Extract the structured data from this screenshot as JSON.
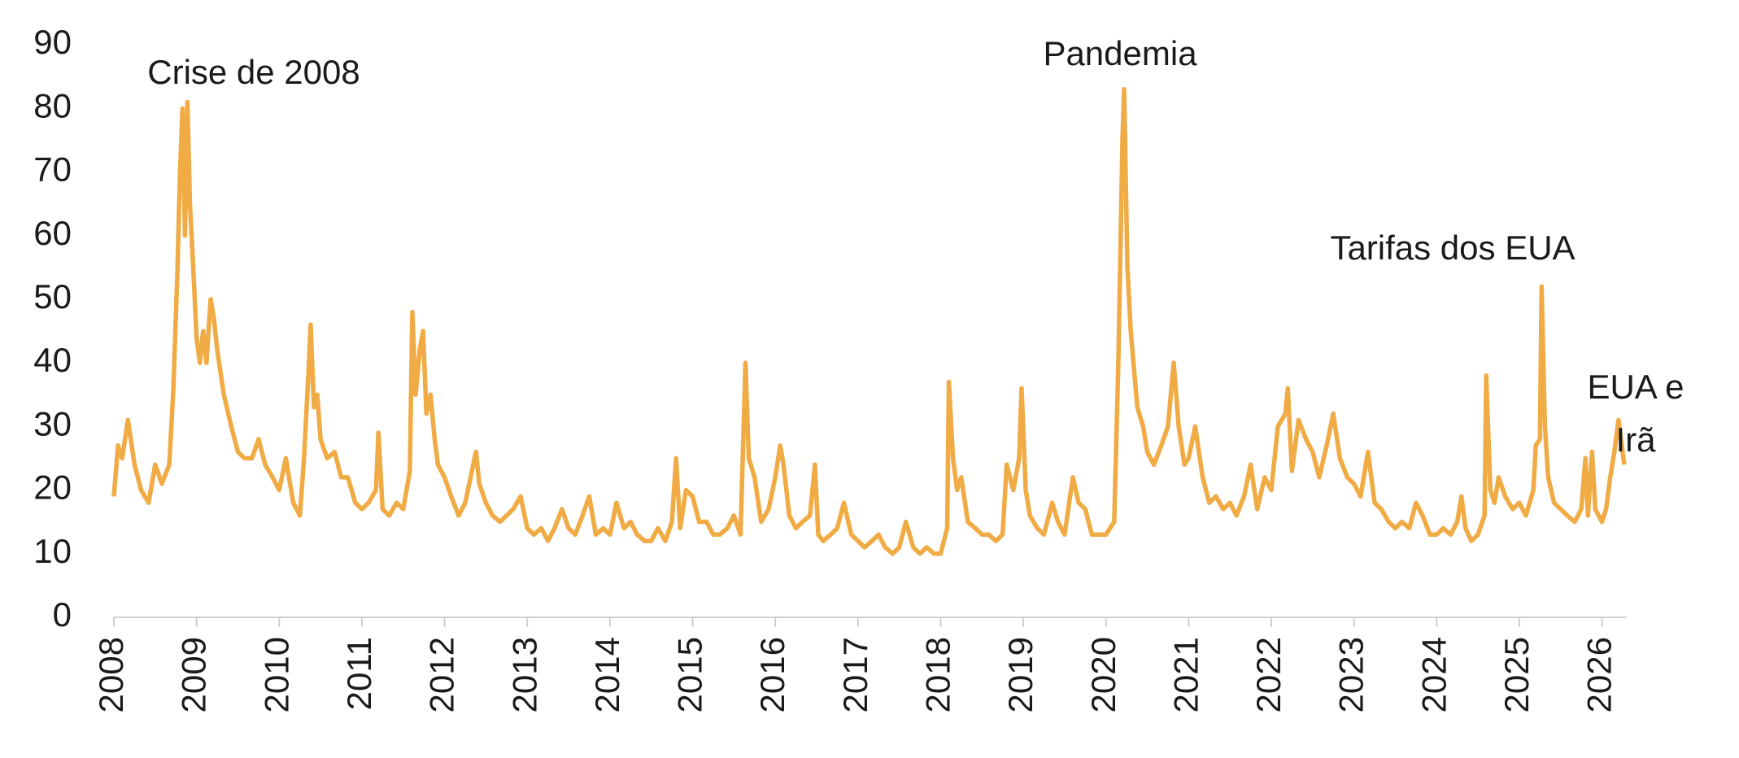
{
  "chart_data": {
    "type": "line",
    "annotations": [
      "Crise de 2008",
      "Pandemia",
      "Tarifas dos EUA",
      "EUA e",
      "Irã"
    ],
    "xlim": [
      2008,
      2026.3
    ],
    "xticks": [
      2008,
      2009,
      2010,
      2011,
      2012,
      2013,
      2014,
      2015,
      2016,
      2017,
      2018,
      2019,
      2020,
      2021,
      2022,
      2023,
      2024,
      2025,
      2026
    ],
    "ylim": [
      0,
      90
    ],
    "yticks": [
      0,
      10,
      20,
      30,
      40,
      50,
      60,
      70,
      80,
      90
    ],
    "grid": false,
    "color": "#f0ab45",
    "x": [
      2008.0,
      2008.05,
      2008.1,
      2008.17,
      2008.25,
      2008.33,
      2008.42,
      2008.5,
      2008.58,
      2008.67,
      2008.72,
      2008.77,
      2008.8,
      2008.83,
      2008.86,
      2008.89,
      2008.92,
      2008.96,
      2009.0,
      2009.04,
      2009.08,
      2009.12,
      2009.17,
      2009.21,
      2009.25,
      2009.33,
      2009.42,
      2009.5,
      2009.58,
      2009.67,
      2009.75,
      2009.83,
      2009.92,
      2010.0,
      2010.08,
      2010.17,
      2010.25,
      2010.3,
      2010.36,
      2010.38,
      2010.42,
      2010.46,
      2010.5,
      2010.58,
      2010.67,
      2010.75,
      2010.83,
      2010.92,
      2011.0,
      2011.08,
      2011.17,
      2011.2,
      2011.25,
      2011.33,
      2011.42,
      2011.5,
      2011.58,
      2011.61,
      2011.65,
      2011.7,
      2011.74,
      2011.78,
      2011.83,
      2011.88,
      2011.92,
      2012.0,
      2012.08,
      2012.17,
      2012.25,
      2012.38,
      2012.42,
      2012.5,
      2012.58,
      2012.67,
      2012.75,
      2012.83,
      2012.92,
      2013.0,
      2013.08,
      2013.17,
      2013.25,
      2013.33,
      2013.42,
      2013.5,
      2013.58,
      2013.67,
      2013.75,
      2013.83,
      2013.92,
      2014.0,
      2014.08,
      2014.17,
      2014.25,
      2014.33,
      2014.42,
      2014.5,
      2014.58,
      2014.67,
      2014.75,
      2014.8,
      2014.85,
      2014.92,
      2015.0,
      2015.08,
      2015.17,
      2015.25,
      2015.33,
      2015.42,
      2015.5,
      2015.58,
      2015.64,
      2015.68,
      2015.75,
      2015.83,
      2015.92,
      2016.0,
      2016.06,
      2016.1,
      2016.17,
      2016.25,
      2016.33,
      2016.42,
      2016.48,
      2016.52,
      2016.58,
      2016.67,
      2016.75,
      2016.83,
      2016.92,
      2017.0,
      2017.08,
      2017.17,
      2017.25,
      2017.33,
      2017.42,
      2017.5,
      2017.58,
      2017.67,
      2017.75,
      2017.83,
      2017.92,
      2018.0,
      2018.08,
      2018.1,
      2018.15,
      2018.2,
      2018.25,
      2018.33,
      2018.42,
      2018.5,
      2018.58,
      2018.67,
      2018.75,
      2018.8,
      2018.88,
      2018.95,
      2018.98,
      2019.03,
      2019.08,
      2019.17,
      2019.25,
      2019.35,
      2019.42,
      2019.5,
      2019.6,
      2019.67,
      2019.75,
      2019.83,
      2019.92,
      2020.0,
      2020.1,
      2020.15,
      2020.2,
      2020.22,
      2020.26,
      2020.3,
      2020.38,
      2020.45,
      2020.5,
      2020.58,
      2020.67,
      2020.75,
      2020.82,
      2020.88,
      2020.95,
      2021.0,
      2021.08,
      2021.17,
      2021.25,
      2021.33,
      2021.42,
      2021.5,
      2021.58,
      2021.67,
      2021.75,
      2021.83,
      2021.92,
      2022.0,
      2022.08,
      2022.17,
      2022.2,
      2022.25,
      2022.33,
      2022.42,
      2022.5,
      2022.58,
      2022.67,
      2022.75,
      2022.83,
      2022.92,
      2023.0,
      2023.08,
      2023.17,
      2023.25,
      2023.33,
      2023.42,
      2023.5,
      2023.58,
      2023.67,
      2023.75,
      2023.83,
      2023.92,
      2024.0,
      2024.08,
      2024.17,
      2024.25,
      2024.3,
      2024.35,
      2024.42,
      2024.5,
      2024.58,
      2024.6,
      2024.65,
      2024.7,
      2024.75,
      2024.83,
      2024.92,
      2025.0,
      2025.08,
      2025.17,
      2025.2,
      2025.25,
      2025.27,
      2025.31,
      2025.35,
      2025.42,
      2025.5,
      2025.58,
      2025.67,
      2025.75,
      2025.8,
      2025.83,
      2025.88,
      2025.92,
      2026.0,
      2026.05,
      2026.1,
      2026.15,
      2026.2,
      2026.27
    ],
    "values": [
      19,
      27,
      25,
      31,
      24,
      20,
      18,
      24,
      21,
      24,
      36,
      55,
      70,
      80,
      60,
      81,
      65,
      55,
      44,
      40,
      45,
      40,
      50,
      47,
      42,
      35,
      30,
      26,
      25,
      25,
      28,
      24,
      22,
      20,
      25,
      18,
      16,
      25,
      40,
      46,
      33,
      35,
      28,
      25,
      26,
      22,
      22,
      18,
      17,
      18,
      20,
      29,
      17,
      16,
      18,
      17,
      23,
      48,
      35,
      42,
      45,
      32,
      35,
      28,
      24,
      22,
      19,
      16,
      18,
      26,
      21,
      18,
      16,
      15,
      16,
      17,
      19,
      14,
      13,
      14,
      12,
      14,
      17,
      14,
      13,
      16,
      19,
      13,
      14,
      13,
      18,
      14,
      15,
      13,
      12,
      12,
      14,
      12,
      15,
      25,
      14,
      20,
      19,
      15,
      15,
      13,
      13,
      14,
      16,
      13,
      40,
      25,
      22,
      15,
      17,
      22,
      27,
      24,
      16,
      14,
      15,
      16,
      24,
      13,
      12,
      13,
      14,
      18,
      13,
      12,
      11,
      12,
      13,
      11,
      10,
      11,
      15,
      11,
      10,
      11,
      10,
      10,
      14,
      37,
      25,
      20,
      22,
      15,
      14,
      13,
      13,
      12,
      13,
      24,
      20,
      25,
      36,
      20,
      16,
      14,
      13,
      18,
      15,
      13,
      22,
      18,
      17,
      13,
      13,
      13,
      15,
      40,
      75,
      83,
      55,
      45,
      33,
      30,
      26,
      24,
      27,
      30,
      40,
      30,
      24,
      25,
      30,
      22,
      18,
      19,
      17,
      18,
      16,
      19,
      24,
      17,
      22,
      20,
      30,
      32,
      36,
      23,
      31,
      28,
      26,
      22,
      27,
      32,
      25,
      22,
      21,
      19,
      26,
      18,
      17,
      15,
      14,
      15,
      14,
      18,
      16,
      13,
      13,
      14,
      13,
      15,
      19,
      14,
      12,
      13,
      16,
      38,
      20,
      18,
      22,
      19,
      17,
      18,
      16,
      20,
      27,
      28,
      52,
      30,
      22,
      18,
      17,
      16,
      15,
      17,
      25,
      16,
      26,
      17,
      15,
      17,
      22,
      26,
      31,
      24
    ]
  }
}
